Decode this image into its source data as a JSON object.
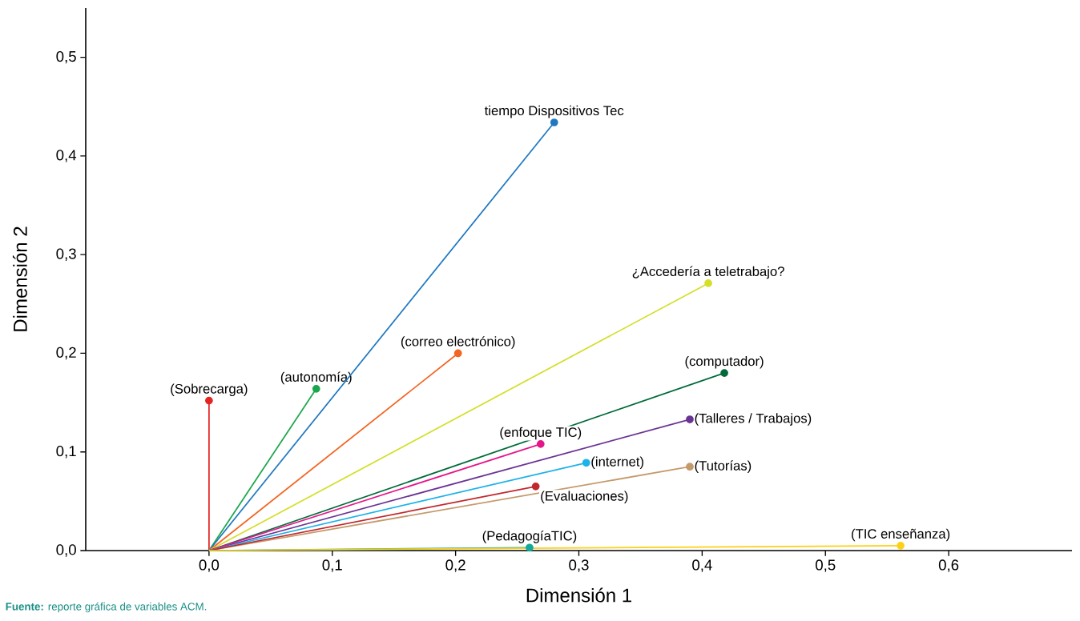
{
  "chart_data": {
    "type": "line",
    "xlabel": "Dimensión 1",
    "ylabel": "Dimensión 2",
    "marker": "circle",
    "line_style": "solid",
    "grid": false,
    "xlim": [
      -0.1,
      0.7
    ],
    "ylim": [
      0,
      0.55
    ],
    "xticks": [
      {
        "value": 0,
        "label": "0,0"
      },
      {
        "value": 0.1,
        "label": "0,1"
      },
      {
        "value": 0.2,
        "label": "0,2"
      },
      {
        "value": 0.3,
        "label": "0,3"
      },
      {
        "value": 0.4,
        "label": "0,4"
      },
      {
        "value": 0.5,
        "label": "0,5"
      },
      {
        "value": 0.6,
        "label": "0,6"
      }
    ],
    "yticks": [
      {
        "value": 0,
        "label": "0,0"
      },
      {
        "value": 0.1,
        "label": "0,1"
      },
      {
        "value": 0.2,
        "label": "0,2"
      },
      {
        "value": 0.3,
        "label": "0,3"
      },
      {
        "value": 0.4,
        "label": "0,4"
      },
      {
        "value": 0.5,
        "label": "0,5"
      }
    ],
    "series": [
      {
        "name": "(Sobrecarga)",
        "color": "#e52421",
        "x": [
          0,
          0.0
        ],
        "values": [
          0,
          0.152
        ]
      },
      {
        "name": "(autonomía)",
        "color": "#1aa64a",
        "x": [
          0,
          0.087
        ],
        "values": [
          0,
          0.164
        ]
      },
      {
        "name": "tiempo Dispositivos Tec",
        "color": "#1f78c1",
        "x": [
          0,
          0.28
        ],
        "values": [
          0,
          0.434
        ]
      },
      {
        "name": "(correo electrónico)",
        "color": "#f26522",
        "x": [
          0,
          0.202
        ],
        "values": [
          0,
          0.2
        ]
      },
      {
        "name": "¿Accedería a teletrabajo?",
        "color": "#d4df2a",
        "x": [
          0,
          0.405
        ],
        "values": [
          0,
          0.271
        ]
      },
      {
        "name": "(computador)",
        "color": "#006b3a",
        "x": [
          0,
          0.418
        ],
        "values": [
          0,
          0.18
        ]
      },
      {
        "name": "(Talleres / Trabajos)",
        "color": "#6a3494",
        "x": [
          0,
          0.39
        ],
        "values": [
          0,
          0.133
        ]
      },
      {
        "name": "(enfoque TIC)",
        "color": "#e5158a",
        "x": [
          0,
          0.269
        ],
        "values": [
          0,
          0.108
        ]
      },
      {
        "name": "(internet)",
        "color": "#1db2e8",
        "x": [
          0,
          0.306
        ],
        "values": [
          0,
          0.089
        ]
      },
      {
        "name": "(Tutorías)",
        "color": "#c49a6c",
        "x": [
          0,
          0.39
        ],
        "values": [
          0,
          0.085
        ]
      },
      {
        "name": "(Evaluaciones)",
        "color": "#c1272d",
        "x": [
          0,
          0.265
        ],
        "values": [
          0,
          0.065
        ]
      },
      {
        "name": "(PedagogíaTIC)",
        "color": "#14a99a",
        "x": [
          0,
          0.26
        ],
        "values": [
          0,
          0.003
        ]
      },
      {
        "name": "(TIC enseñanza)",
        "color": "#fcd116",
        "x": [
          0,
          0.561
        ],
        "values": [
          0,
          0.005
        ]
      }
    ],
    "annotations": [
      "**Fuente:** reporte gráfica de variables ACM."
    ]
  }
}
